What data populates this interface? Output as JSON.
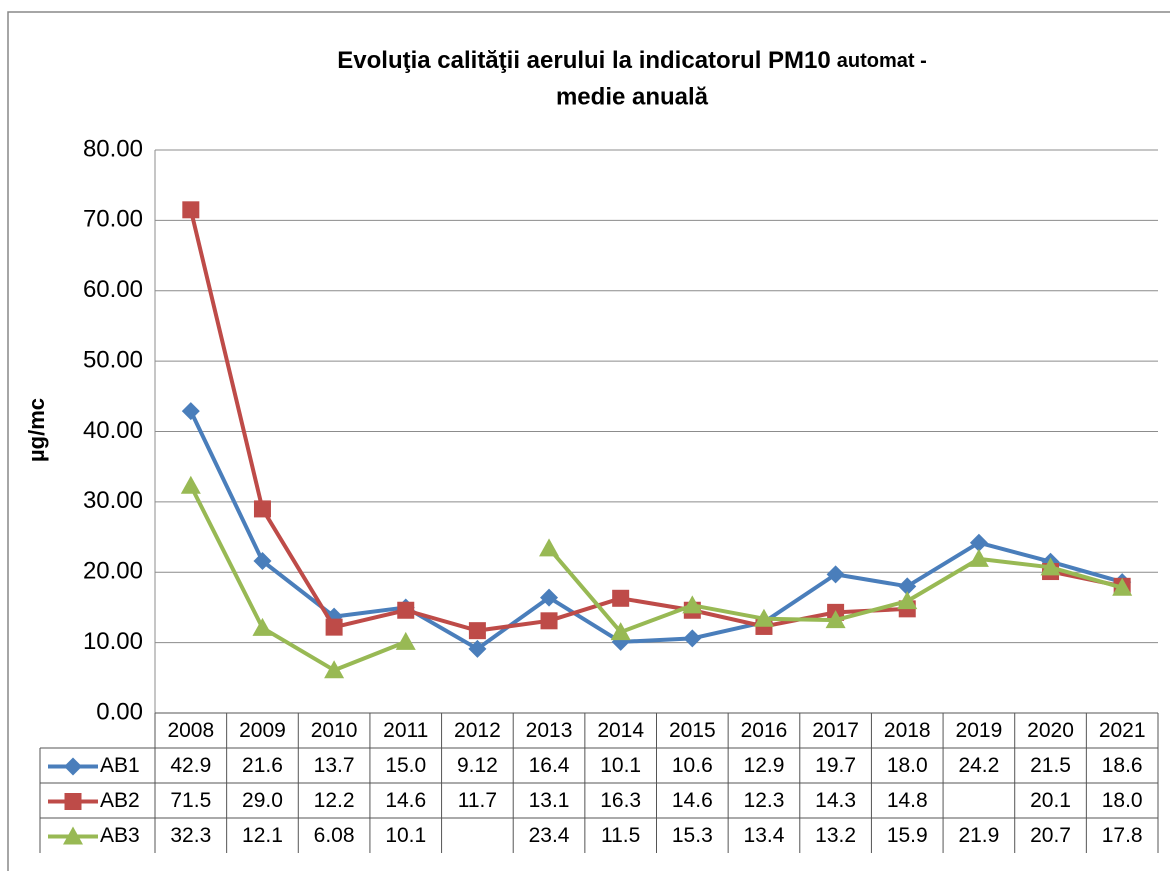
{
  "chart_data": {
    "type": "line",
    "title": [
      "Evoluţia calităţii aerului la indicatorul PM10",
      "automat -",
      "medie anuală"
    ],
    "y_label": "µg/mc",
    "categories": [
      "2008",
      "2009",
      "2010",
      "2011",
      "2012",
      "2013",
      "2014",
      "2015",
      "2016",
      "2017",
      "2018",
      "2019",
      "2020",
      "2021"
    ],
    "ylim": [
      0,
      80
    ],
    "yticks": [
      {
        "value": 0,
        "label": "0.00"
      },
      {
        "value": 10,
        "label": "10.00"
      },
      {
        "value": 20,
        "label": "20.00"
      },
      {
        "value": 30,
        "label": "30.00"
      },
      {
        "value": 40,
        "label": "40.00"
      },
      {
        "value": 50,
        "label": "50.00"
      },
      {
        "value": 60,
        "label": "60.00"
      },
      {
        "value": 70,
        "label": "70.00"
      },
      {
        "value": 80,
        "label": "80.00"
      }
    ],
    "grid": true,
    "series": [
      {
        "name": "AB1",
        "color": "#4a7ebb",
        "marker": "diamond",
        "values": [
          42.9,
          21.6,
          13.7,
          15.0,
          9.12,
          16.4,
          10.1,
          10.6,
          12.9,
          19.7,
          18.0,
          24.2,
          21.5,
          18.6
        ],
        "value_labels": [
          "42.9",
          "21.6",
          "13.7",
          "15.0",
          "9.12",
          "16.4",
          "10.1",
          "10.6",
          "12.9",
          "19.7",
          "18.0",
          "24.2",
          "21.5",
          "18.6"
        ]
      },
      {
        "name": "AB2",
        "color": "#be4b48",
        "marker": "square",
        "values": [
          71.5,
          29.0,
          12.2,
          14.6,
          11.7,
          13.1,
          16.3,
          14.6,
          12.3,
          14.3,
          14.8,
          null,
          20.1,
          18.0
        ],
        "value_labels": [
          "71.5",
          "29.0",
          "12.2",
          "14.6",
          "11.7",
          "13.1",
          "16.3",
          "14.6",
          "12.3",
          "14.3",
          "14.8",
          null,
          "20.1",
          "18.0"
        ]
      },
      {
        "name": "AB3",
        "color": "#98b954",
        "marker": "triangle",
        "values": [
          32.3,
          12.1,
          6.08,
          10.1,
          null,
          23.4,
          11.5,
          15.3,
          13.4,
          13.2,
          15.9,
          21.9,
          20.7,
          17.8
        ],
        "value_labels": [
          "32.3",
          "12.1",
          "6.08",
          "10.1",
          null,
          "23.4",
          "11.5",
          "15.3",
          "13.4",
          "13.2",
          "15.9",
          "21.9",
          "20.7",
          "17.8"
        ]
      }
    ]
  }
}
